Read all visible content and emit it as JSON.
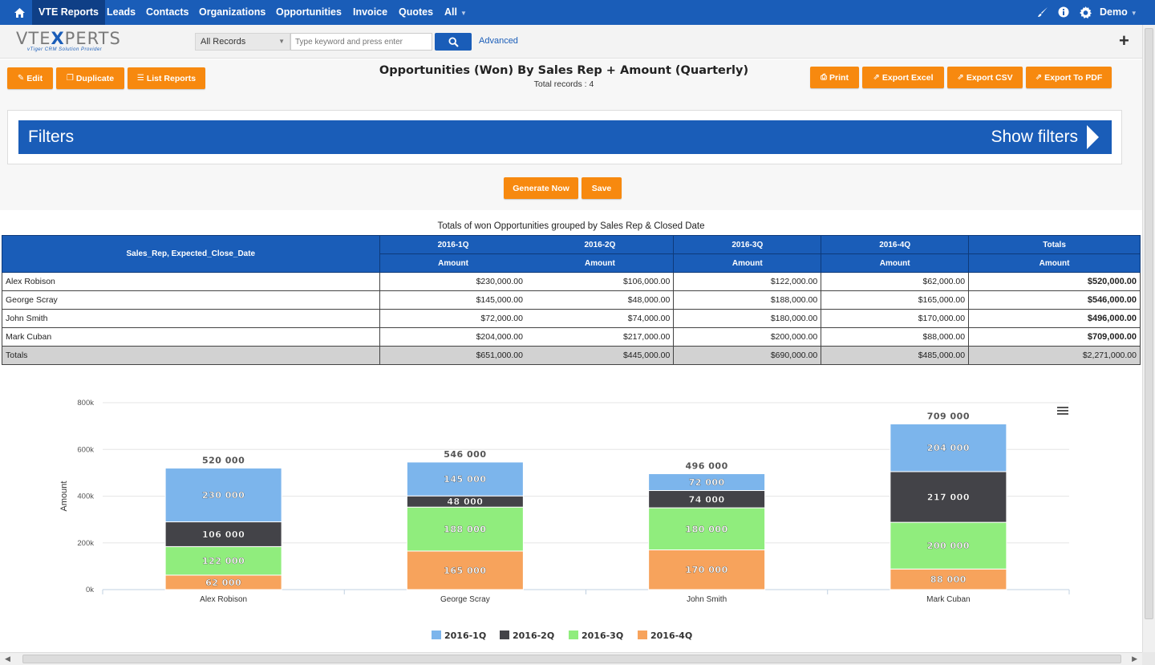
{
  "nav": {
    "home_icon": "home-icon",
    "items": [
      "VTE Reports",
      "Leads",
      "Contacts",
      "Organizations",
      "Opportunities",
      "Invoice",
      "Quotes",
      "All"
    ],
    "user": "Demo"
  },
  "header": {
    "logo_main_left": "VTE",
    "logo_main_x": "X",
    "logo_main_right": "PERTS",
    "logo_sub": "vTiger CRM Solution Provider",
    "records_select": "All Records",
    "search_placeholder": "Type keyword and press enter",
    "advanced": "Advanced",
    "plus": "+"
  },
  "toolbar": {
    "edit": "Edit",
    "duplicate": "Duplicate",
    "list_reports": "List Reports",
    "print": "Print",
    "export_excel": "Export Excel",
    "export_csv": "Export CSV",
    "export_pdf": "Export To PDF",
    "report_title": "Opportunities (Won) By Sales Rep + Amount (Quarterly)",
    "total_records": "Total records : 4",
    "filters_label": "Filters",
    "show_filters": "Show filters",
    "generate_now": "Generate Now",
    "save": "Save"
  },
  "table": {
    "title": "Totals of won Opportunities grouped by Sales Rep & Closed Date",
    "group_header": "Sales_Rep, Expected_Close_Date",
    "columns": [
      "2016-1Q",
      "2016-2Q",
      "2016-3Q",
      "2016-4Q",
      "Totals"
    ],
    "sub_header": "Amount",
    "rows": [
      {
        "name": "Alex Robison",
        "values": [
          "$230,000.00",
          "$106,000.00",
          "$122,000.00",
          "$62,000.00"
        ],
        "total": "$520,000.00"
      },
      {
        "name": "George Scray",
        "values": [
          "$145,000.00",
          "$48,000.00",
          "$188,000.00",
          "$165,000.00"
        ],
        "total": "$546,000.00"
      },
      {
        "name": "John Smith",
        "values": [
          "$72,000.00",
          "$74,000.00",
          "$180,000.00",
          "$170,000.00"
        ],
        "total": "$496,000.00"
      },
      {
        "name": "Mark Cuban",
        "values": [
          "$204,000.00",
          "$217,000.00",
          "$200,000.00",
          "$88,000.00"
        ],
        "total": "$709,000.00"
      }
    ],
    "totals_row": {
      "name": "Totals",
      "values": [
        "$651,000.00",
        "$445,000.00",
        "$690,000.00",
        "$485,000.00"
      ],
      "total": "$2,271,000.00"
    }
  },
  "chart_data": {
    "type": "bar",
    "stacked": true,
    "categories": [
      "Alex Robison",
      "George Scray",
      "John Smith",
      "Mark Cuban"
    ],
    "series": [
      {
        "name": "2016-1Q",
        "color": "#7cb5ec",
        "values": [
          230000,
          145000,
          72000,
          204000
        ]
      },
      {
        "name": "2016-2Q",
        "color": "#434348",
        "values": [
          106000,
          48000,
          74000,
          217000
        ]
      },
      {
        "name": "2016-3Q",
        "color": "#90ed7d",
        "values": [
          122000,
          188000,
          180000,
          200000
        ]
      },
      {
        "name": "2016-4Q",
        "color": "#f7a35c",
        "values": [
          62000,
          165000,
          170000,
          88000
        ]
      }
    ],
    "totals": [
      520000,
      546000,
      496000,
      709000
    ],
    "ylabel": "Amount",
    "ylim": [
      0,
      800000
    ],
    "yticks": [
      "0k",
      "200k",
      "400k",
      "600k",
      "800k"
    ],
    "ytick_values": [
      0,
      200000,
      400000,
      600000,
      800000
    ],
    "legend_position": "bottom",
    "grid": true
  }
}
